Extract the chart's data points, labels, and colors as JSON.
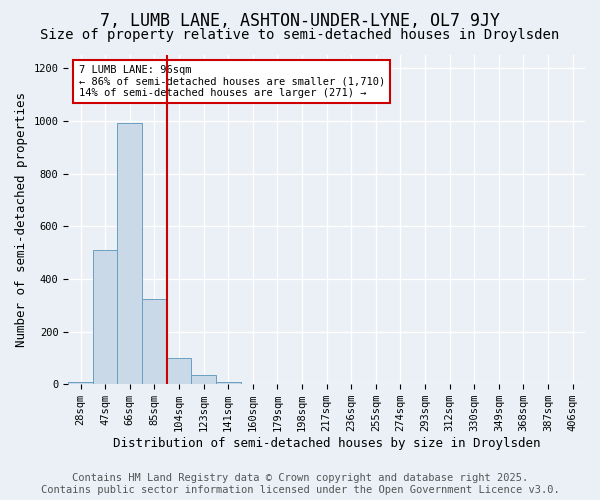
{
  "title": "7, LUMB LANE, ASHTON-UNDER-LYNE, OL7 9JY",
  "subtitle": "Size of property relative to semi-detached houses in Droylsden",
  "xlabel": "Distribution of semi-detached houses by size in Droylsden",
  "ylabel": "Number of semi-detached properties",
  "bins": [
    "28sqm",
    "47sqm",
    "66sqm",
    "85sqm",
    "104sqm",
    "123sqm",
    "141sqm",
    "160sqm",
    "179sqm",
    "198sqm",
    "217sqm",
    "236sqm",
    "255sqm",
    "274sqm",
    "293sqm",
    "312sqm",
    "330sqm",
    "349sqm",
    "368sqm",
    "387sqm",
    "406sqm"
  ],
  "values": [
    10,
    510,
    990,
    325,
    100,
    35,
    10,
    0,
    0,
    0,
    0,
    0,
    0,
    0,
    0,
    0,
    0,
    0,
    0,
    0,
    0
  ],
  "bar_color": "#c9d9e8",
  "bar_edge_color": "#6a9fc0",
  "red_line_x": 3.5,
  "annotation_title": "7 LUMB LANE: 96sqm",
  "annotation_line1": "← 86% of semi-detached houses are smaller (1,710)",
  "annotation_line2": "14% of semi-detached houses are larger (271) →",
  "annotation_box_color": "#ffffff",
  "annotation_box_edge": "#cc0000",
  "red_line_color": "#cc0000",
  "footer1": "Contains HM Land Registry data © Crown copyright and database right 2025.",
  "footer2": "Contains public sector information licensed under the Open Government Licence v3.0.",
  "ylim": [
    0,
    1250
  ],
  "yticks": [
    0,
    200,
    400,
    600,
    800,
    1000,
    1200
  ],
  "background_color": "#eaf0f6",
  "grid_color": "#ffffff",
  "title_fontsize": 12,
  "subtitle_fontsize": 10,
  "axis_label_fontsize": 9,
  "tick_fontsize": 7.5,
  "footer_fontsize": 7.5
}
